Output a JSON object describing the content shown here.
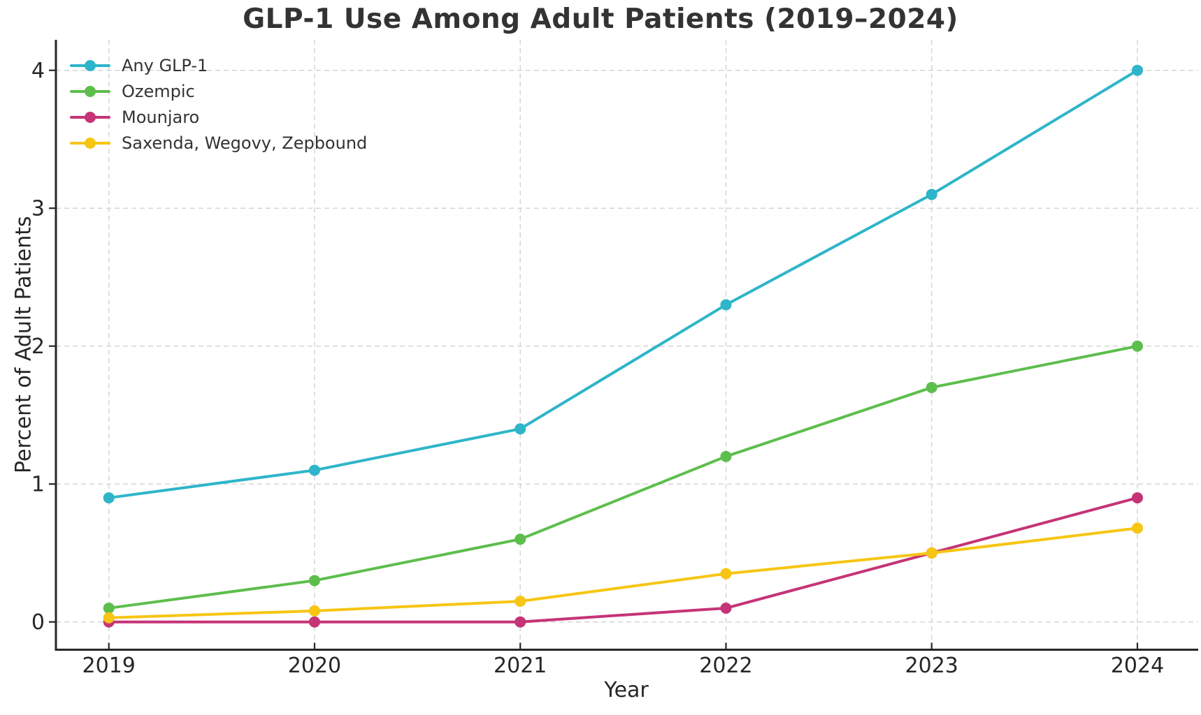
{
  "figure": {
    "background": "#ffffff"
  },
  "chart_data": {
    "type": "line",
    "title": "GLP-1 Use Among Adult Patients (2019–2024)",
    "xlabel": "Year",
    "ylabel": "Percent of Adult Patients",
    "x": [
      2019,
      2020,
      2021,
      2022,
      2023,
      2024
    ],
    "yticks": [
      0,
      1,
      2,
      3,
      4
    ],
    "xlim": [
      2019,
      2024
    ],
    "ylim": [
      0,
      4
    ],
    "grid": true,
    "grid_style": "dashed",
    "legend_position": "upper-left",
    "colors": {
      "grid": "#d5d5d5",
      "axis": "#262626",
      "tick_text": "#262626",
      "title_text": "#333333",
      "background": "#ffffff"
    },
    "series": [
      {
        "name": "Any GLP-1",
        "color": "#2eb5c9",
        "values": [
          0.9,
          1.1,
          1.4,
          2.3,
          3.1,
          4.0
        ]
      },
      {
        "name": "Ozempic",
        "color": "#5dbe4d",
        "values": [
          0.1,
          0.3,
          0.6,
          1.2,
          1.7,
          2.0
        ]
      },
      {
        "name": "Mounjaro",
        "color": "#c53477",
        "values": [
          0.0,
          0.0,
          0.0,
          0.1,
          0.5,
          0.9
        ]
      },
      {
        "name": "Saxenda, Wegovy, Zepbound",
        "color": "#f7c513",
        "values": [
          0.03,
          0.08,
          0.15,
          0.35,
          0.5,
          0.68
        ]
      }
    ]
  }
}
